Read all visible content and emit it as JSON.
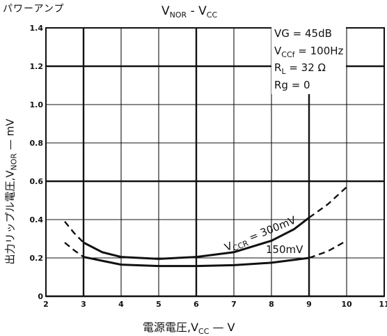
{
  "header": {
    "corner_label": "パワーアンプ",
    "title_main": "V",
    "title_main_sub": "NOR",
    "title_sep": " - ",
    "title_var": "V",
    "title_var_sub": "CC"
  },
  "axes": {
    "y_label_main": "出力リップル電圧,V",
    "y_label_sub": "NOR",
    "y_label_unit": " — mV",
    "x_label_main": "電源電圧,V",
    "x_label_sub": "CC",
    "x_label_unit": " — V"
  },
  "conditions": [
    {
      "main": "VG = 45dB",
      "sub": "",
      "rest": ""
    },
    {
      "main": "V",
      "sub": "CCf",
      "rest": " = 100Hz"
    },
    {
      "main": "R",
      "sub": "L",
      "rest": " = 32 Ω"
    },
    {
      "main": "Rg = 0",
      "sub": "",
      "rest": ""
    }
  ],
  "chart_data": {
    "type": "line",
    "title": "VNOR - VCC",
    "xlabel": "電源電圧,VCC — V",
    "ylabel": "出力リップル電圧,VNOR — mV",
    "xlim": [
      2,
      11
    ],
    "ylim": [
      0,
      1.4
    ],
    "x_ticks": [
      "2",
      "3",
      "4",
      "5",
      "6",
      "7",
      "8",
      "9",
      "10",
      "11"
    ],
    "y_ticks": [
      "0",
      "0.2",
      "0.4",
      "0.6",
      "0.8",
      "1.0",
      "1.2",
      "1.4"
    ],
    "grid": true,
    "series": [
      {
        "name": "VCCR = 300mV",
        "label_main": "V",
        "label_sub": "CCR",
        "label_rest": " = 300mV",
        "solid": [
          [
            3.0,
            0.28
          ],
          [
            3.5,
            0.23
          ],
          [
            4.0,
            0.205
          ],
          [
            5.0,
            0.195
          ],
          [
            6.0,
            0.205
          ],
          [
            7.0,
            0.23
          ],
          [
            8.0,
            0.29
          ],
          [
            8.6,
            0.35
          ],
          [
            9.0,
            0.41
          ]
        ],
        "dashed_left": [
          [
            2.5,
            0.39
          ],
          [
            2.75,
            0.33
          ],
          [
            3.0,
            0.28
          ]
        ],
        "dashed_right": [
          [
            9.0,
            0.41
          ],
          [
            9.5,
            0.48
          ],
          [
            10.0,
            0.57
          ]
        ]
      },
      {
        "name": "150mV",
        "label_main": "150mV",
        "label_sub": "",
        "label_rest": "",
        "solid": [
          [
            3.0,
            0.205
          ],
          [
            3.5,
            0.185
          ],
          [
            4.0,
            0.165
          ],
          [
            5.0,
            0.158
          ],
          [
            6.0,
            0.158
          ],
          [
            7.0,
            0.162
          ],
          [
            8.0,
            0.175
          ],
          [
            9.0,
            0.2
          ]
        ],
        "dashed_left": [
          [
            2.5,
            0.28
          ],
          [
            2.75,
            0.24
          ],
          [
            3.0,
            0.205
          ]
        ],
        "dashed_right": [
          [
            9.0,
            0.2
          ],
          [
            9.5,
            0.235
          ],
          [
            10.0,
            0.29
          ]
        ]
      }
    ]
  }
}
